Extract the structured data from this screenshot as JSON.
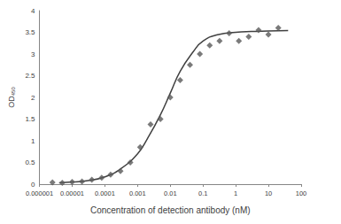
{
  "chart_data": {
    "type": "scatter",
    "x_label": "Concentration of detection antibody (nM)",
    "y_label": "OD450",
    "log": "x",
    "grid": false,
    "xlim": [
      1e-06,
      100
    ],
    "xticks": [
      1e-06,
      1e-05,
      0.0001,
      0.001,
      0.01,
      0.1,
      1,
      10,
      100
    ],
    "ylim": [
      0,
      4
    ],
    "yticks": [
      0,
      0.5,
      1,
      1.5,
      2,
      2.5,
      3,
      3.5,
      4
    ],
    "series": [
      {
        "type": "scatter",
        "marker": "diamond",
        "color": "#595959",
        "x": [
          2.5e-06,
          5e-06,
          1e-05,
          2e-05,
          4e-05,
          8e-05,
          0.00015,
          0.0003,
          0.0006,
          0.0012,
          0.0025,
          0.005,
          0.01,
          0.02,
          0.04,
          0.08,
          0.16,
          0.32,
          0.63,
          1.25,
          2.5,
          5,
          10,
          20
        ],
        "values": [
          0.04,
          0.03,
          0.05,
          0.06,
          0.1,
          0.15,
          0.22,
          0.3,
          0.5,
          0.85,
          1.38,
          1.5,
          2.0,
          2.4,
          2.75,
          3.0,
          3.2,
          3.3,
          3.48,
          3.3,
          3.4,
          3.55,
          3.45,
          3.6
        ]
      },
      {
        "type": "line",
        "line_style": "solid",
        "color": "#404040",
        "x": [
          4e-06,
          1e-05,
          3e-05,
          0.0001,
          0.0003,
          0.001,
          0.002,
          0.005,
          0.01,
          0.02,
          0.05,
          0.1,
          0.3,
          1,
          3,
          10,
          40
        ],
        "values": [
          0.03,
          0.05,
          0.08,
          0.17,
          0.35,
          0.7,
          1.05,
          1.6,
          2.1,
          2.6,
          3.05,
          3.3,
          3.45,
          3.5,
          3.52,
          3.53,
          3.54
        ]
      }
    ]
  }
}
